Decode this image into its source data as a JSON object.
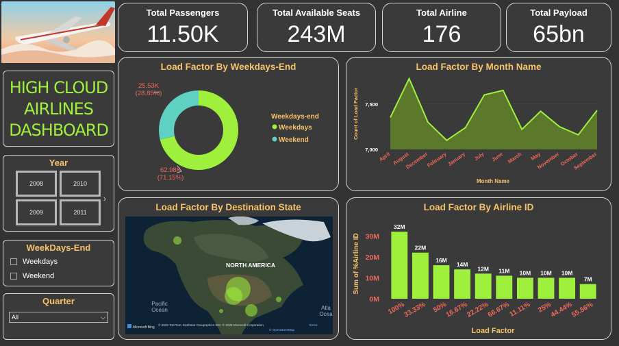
{
  "kpis": [
    {
      "title": "Total Passengers",
      "value": "11.50K"
    },
    {
      "title": "Total Available Seats",
      "value": "243M"
    },
    {
      "title": "Total Airline",
      "value": "176"
    },
    {
      "title": "Total Payload",
      "value": "65bn"
    }
  ],
  "dashboard_title": [
    "HIGH CLOUD",
    "AIRLINES",
    "DASHBOARD"
  ],
  "year_slicer": {
    "label": "Year",
    "options": [
      "2008",
      "2010",
      "2009",
      "2011"
    ]
  },
  "weekdays_slicer": {
    "label": "WeekDays-End",
    "options": [
      "Weekdays",
      "Weekend"
    ]
  },
  "quarter_slicer": {
    "label": "Quarter",
    "value": "All"
  },
  "map": {
    "title": "Load Factor By Destination State",
    "labels": {
      "continent": "NORTH AMERICA",
      "pacific": "Pacific\nOcean",
      "atlantic": "Atla\nOcea"
    },
    "attribution": "© 2025 TomTom, Earthstar Geographics SIO, © 2025 Microsoft Corporation,",
    "terms": "Terms",
    "osm": "© OpenStreetMap",
    "bing": "Microsoft Bing"
  },
  "chart_data": [
    {
      "type": "pie",
      "title": "Load Factor By Weekdays-End",
      "legend_title": "Weekdays-end",
      "legend_position": "right",
      "slices": [
        {
          "name": "Weekdays",
          "value": 62980,
          "label": "62.98K",
          "pct": "(71.15%)",
          "color": "#9ef03d"
        },
        {
          "name": "Weekend",
          "value": 25530,
          "label": "25.53K",
          "pct": "(28.85%)",
          "color": "#5ed1c2"
        }
      ]
    },
    {
      "type": "area",
      "title": "Load Factor By Month Name",
      "xlabel": "Month Name",
      "ylabel": "Count of Load Factor",
      "categories": [
        "April",
        "August",
        "December",
        "February",
        "January",
        "July",
        "June",
        "March",
        "May",
        "November",
        "October",
        "September"
      ],
      "values": [
        7350,
        7780,
        7300,
        7100,
        7240,
        7600,
        7650,
        7220,
        7420,
        7250,
        7160,
        7430
      ],
      "ylim": [
        7000,
        7800
      ],
      "yticks": [
        {
          "v": 7000,
          "label": "7,000"
        },
        {
          "v": 7500,
          "label": "7,500"
        }
      ],
      "color": "#9ef03d"
    },
    {
      "type": "bar",
      "title": "Load Factor By Airline ID",
      "xlabel": "Load Factor",
      "ylabel": "Sum of %Airline ID",
      "categories": [
        "100%",
        "33.33%",
        "50%",
        "16.67%",
        "22.22%",
        "66.67%",
        "11.11%",
        "25%",
        "44.44%",
        "55.56%"
      ],
      "values": [
        32,
        22,
        16,
        14,
        12,
        11,
        10,
        10,
        10,
        7
      ],
      "value_labels": [
        "32M",
        "22M",
        "16M",
        "14M",
        "12M",
        "11M",
        "10M",
        "10M",
        "10M",
        "7M"
      ],
      "ylim": [
        0,
        35
      ],
      "yticks": [
        {
          "v": 0,
          "label": "0M"
        },
        {
          "v": 10,
          "label": "10M"
        },
        {
          "v": 20,
          "label": "20M"
        },
        {
          "v": 30,
          "label": "30M"
        }
      ],
      "color": "#9ef03d"
    }
  ]
}
